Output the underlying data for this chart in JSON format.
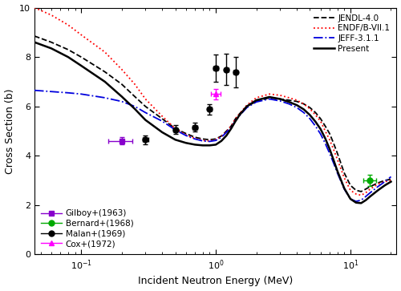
{
  "xlabel": "Incident Neutron Energy (MeV)",
  "ylabel": "Cross Section (b)",
  "xlim": [
    0.045,
    22
  ],
  "ylim": [
    0,
    10
  ],
  "yticks": [
    0,
    2,
    4,
    6,
    8,
    10
  ],
  "JENDL_x": [
    0.045,
    0.06,
    0.08,
    0.1,
    0.15,
    0.2,
    0.25,
    0.3,
    0.4,
    0.5,
    0.6,
    0.7,
    0.8,
    0.9,
    1.0,
    1.1,
    1.2,
    1.3,
    1.4,
    1.5,
    1.7,
    2.0,
    2.5,
    3.0,
    3.5,
    4.0,
    4.5,
    5.0,
    5.5,
    6.0,
    6.5,
    7.0,
    7.5,
    8.0,
    9.0,
    10.0,
    11.0,
    12.0,
    13.0,
    14.0,
    16.0,
    18.0,
    20.0
  ],
  "JENDL_y": [
    8.85,
    8.6,
    8.3,
    8.0,
    7.4,
    6.9,
    6.4,
    6.0,
    5.5,
    5.1,
    4.9,
    4.75,
    4.68,
    4.65,
    4.68,
    4.8,
    5.0,
    5.2,
    5.5,
    5.7,
    6.0,
    6.2,
    6.35,
    6.3,
    6.25,
    6.2,
    6.1,
    5.95,
    5.75,
    5.5,
    5.2,
    4.9,
    4.5,
    4.1,
    3.3,
    2.8,
    2.6,
    2.55,
    2.65,
    2.75,
    2.9,
    3.0,
    3.05
  ],
  "ENDF_x": [
    0.045,
    0.06,
    0.08,
    0.1,
    0.15,
    0.2,
    0.25,
    0.3,
    0.4,
    0.5,
    0.6,
    0.7,
    0.8,
    0.9,
    1.0,
    1.1,
    1.2,
    1.3,
    1.4,
    1.5,
    1.7,
    2.0,
    2.5,
    3.0,
    3.5,
    4.0,
    4.5,
    5.0,
    5.5,
    6.0,
    6.5,
    7.0,
    7.5,
    8.0,
    9.0,
    10.0,
    11.0,
    12.0,
    13.0,
    14.0,
    16.0,
    18.0,
    20.0
  ],
  "ENDF_y": [
    10.0,
    9.7,
    9.3,
    8.9,
    8.2,
    7.5,
    6.9,
    6.3,
    5.6,
    5.1,
    4.85,
    4.7,
    4.62,
    4.6,
    4.65,
    4.78,
    4.98,
    5.2,
    5.5,
    5.7,
    6.05,
    6.35,
    6.5,
    6.45,
    6.35,
    6.25,
    6.1,
    5.9,
    5.65,
    5.4,
    5.0,
    4.65,
    4.25,
    3.85,
    3.1,
    2.6,
    2.45,
    2.4,
    2.5,
    2.65,
    2.85,
    2.95,
    3.0
  ],
  "JEFF_x": [
    0.045,
    0.06,
    0.08,
    0.1,
    0.15,
    0.2,
    0.25,
    0.3,
    0.4,
    0.5,
    0.6,
    0.7,
    0.8,
    0.9,
    1.0,
    1.1,
    1.2,
    1.3,
    1.4,
    1.5,
    1.7,
    2.0,
    2.5,
    3.0,
    3.5,
    4.0,
    4.5,
    5.0,
    5.5,
    6.0,
    6.5,
    7.0,
    7.5,
    8.0,
    9.0,
    10.0,
    11.0,
    12.0,
    13.0,
    14.0,
    16.0,
    18.0,
    20.0
  ],
  "JEFF_y": [
    6.65,
    6.6,
    6.55,
    6.5,
    6.35,
    6.2,
    6.0,
    5.75,
    5.4,
    5.05,
    4.82,
    4.68,
    4.6,
    4.58,
    4.62,
    4.75,
    4.95,
    5.15,
    5.42,
    5.62,
    5.95,
    6.18,
    6.3,
    6.22,
    6.1,
    5.95,
    5.75,
    5.5,
    5.2,
    4.88,
    4.5,
    4.1,
    3.7,
    3.3,
    2.65,
    2.25,
    2.15,
    2.2,
    2.35,
    2.5,
    2.75,
    2.95,
    3.15
  ],
  "Present_x": [
    0.045,
    0.06,
    0.08,
    0.1,
    0.15,
    0.2,
    0.25,
    0.3,
    0.4,
    0.5,
    0.6,
    0.7,
    0.8,
    0.9,
    1.0,
    1.1,
    1.2,
    1.3,
    1.4,
    1.5,
    1.7,
    2.0,
    2.5,
    3.0,
    3.5,
    4.0,
    4.5,
    5.0,
    5.5,
    6.0,
    6.5,
    7.0,
    7.5,
    8.0,
    9.0,
    10.0,
    11.0,
    12.0,
    13.0,
    14.0,
    16.0,
    18.0,
    20.0
  ],
  "Present_y": [
    8.6,
    8.35,
    8.0,
    7.65,
    7.0,
    6.4,
    5.9,
    5.45,
    4.95,
    4.65,
    4.52,
    4.45,
    4.42,
    4.42,
    4.45,
    4.6,
    4.82,
    5.1,
    5.4,
    5.65,
    6.0,
    6.25,
    6.38,
    6.3,
    6.18,
    6.05,
    5.88,
    5.65,
    5.38,
    5.08,
    4.7,
    4.28,
    3.82,
    3.38,
    2.68,
    2.25,
    2.1,
    2.08,
    2.2,
    2.35,
    2.6,
    2.8,
    2.95
  ],
  "Gilboy_x": [
    0.2
  ],
  "Gilboy_y": [
    4.6
  ],
  "Gilboy_xerr_lo": [
    0.04
  ],
  "Gilboy_xerr_hi": [
    0.04
  ],
  "Gilboy_yerr": [
    0.15
  ],
  "Bernard_x": [
    14.0
  ],
  "Bernard_y": [
    3.0
  ],
  "Bernard_xerr_lo": [
    1.5
  ],
  "Bernard_xerr_hi": [
    1.5
  ],
  "Bernard_yerr": [
    0.22
  ],
  "Malan_x": [
    0.3,
    0.5,
    0.7,
    0.9,
    1.0,
    1.2,
    1.4
  ],
  "Malan_y": [
    4.65,
    5.05,
    5.15,
    5.88,
    7.55,
    7.5,
    7.4
  ],
  "Malan_xerr": [
    0.015,
    0.02,
    0.025,
    0.03,
    0.035,
    0.04,
    0.045
  ],
  "Malan_yerr": [
    0.18,
    0.18,
    0.18,
    0.22,
    0.55,
    0.62,
    0.62
  ],
  "Cox_x": [
    1.0
  ],
  "Cox_y": [
    6.5
  ],
  "Cox_xerr_lo": [
    0.08
  ],
  "Cox_xerr_hi": [
    0.08
  ],
  "Cox_yerr": [
    0.22
  ]
}
